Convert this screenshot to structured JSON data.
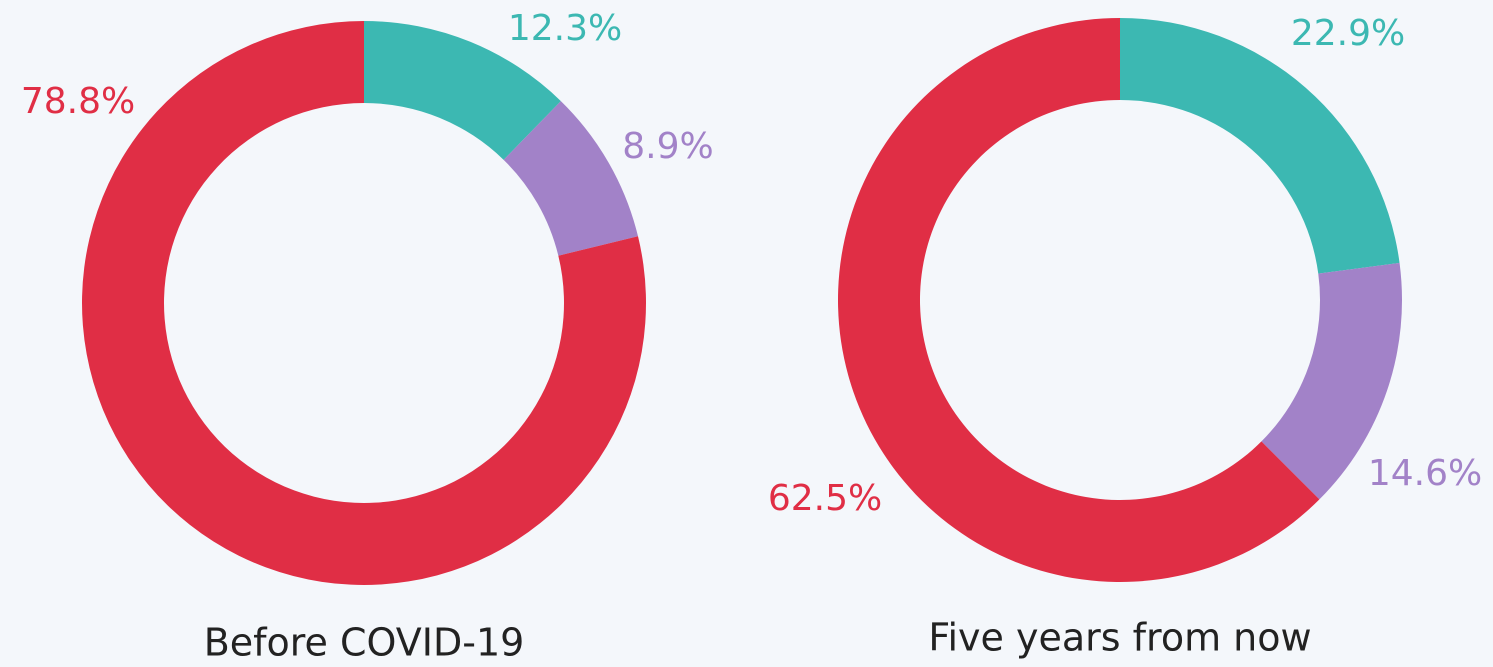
{
  "chart_data": [
    {
      "type": "pie",
      "donut": true,
      "title": "Before COVID-19",
      "values": [
        12.3,
        8.9,
        78.8
      ],
      "value_labels": [
        "12.3%",
        "8.9%",
        "78.8%"
      ],
      "colors": [
        "#3cb8b2",
        "#a282c8",
        "#e02e45"
      ]
    },
    {
      "type": "pie",
      "donut": true,
      "title": "Five years from now",
      "values": [
        22.9,
        14.6,
        62.5
      ],
      "value_labels": [
        "22.9%",
        "14.6%",
        "62.5%"
      ],
      "colors": [
        "#3cb8b2",
        "#a282c8",
        "#e02e45"
      ]
    }
  ]
}
